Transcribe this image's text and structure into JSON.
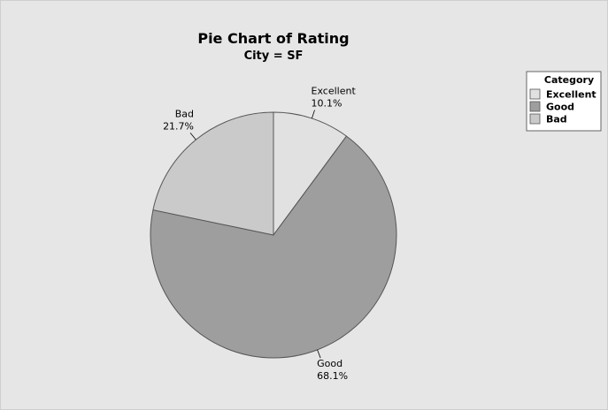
{
  "colors": {
    "background": "#e6e6e6",
    "panel_border": "#cfcfcf",
    "slice_outline": "#555555",
    "legend_background": "#ffffff",
    "legend_border": "#666666"
  },
  "chart_data": {
    "type": "pie",
    "title": "Pie Chart of Rating",
    "subtitle": "City = SF",
    "slices": [
      {
        "category": "Excellent",
        "percent": 10.1,
        "percent_label": "10.1%",
        "color": "#e1e1e1"
      },
      {
        "category": "Good",
        "percent": 68.1,
        "percent_label": "68.1%",
        "color": "#9e9e9e"
      },
      {
        "category": "Bad",
        "percent": 21.7,
        "percent_label": "21.7%",
        "color": "#cacaca"
      }
    ],
    "legend": {
      "title": "Category",
      "placement": "top-right",
      "entries": [
        {
          "label": "Excellent",
          "color": "#e1e1e1"
        },
        {
          "label": "Good",
          "color": "#9e9e9e"
        },
        {
          "label": "Bad",
          "color": "#cacaca"
        }
      ]
    },
    "start_angle": "12 o'clock",
    "direction": "clockwise"
  }
}
